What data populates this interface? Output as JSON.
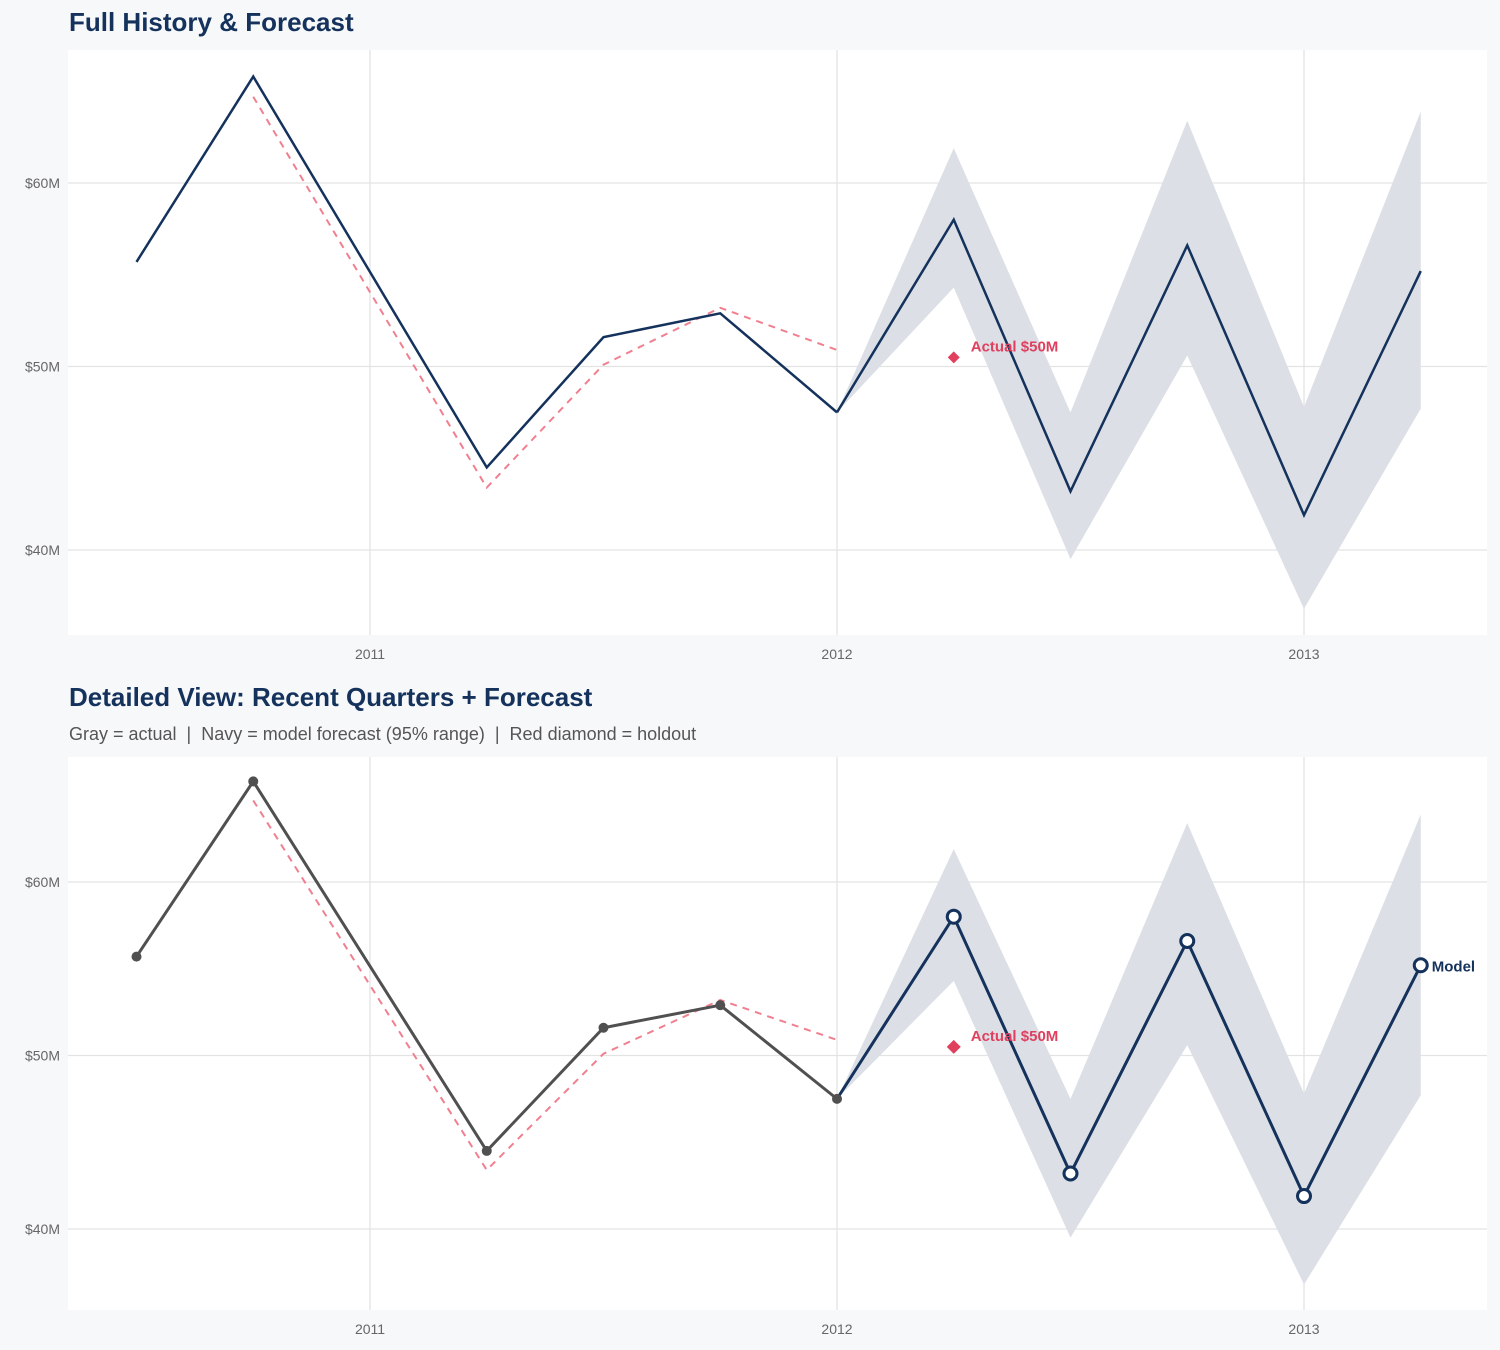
{
  "colors": {
    "navy": "#14325c",
    "actual_gray": "#505050",
    "holdout_red": "#e0405e",
    "dashed_red": "#f08090",
    "band": "#dce0e6"
  },
  "chart_data": [
    {
      "type": "line",
      "title": "Full History & Forecast",
      "xlabel": "",
      "ylabel": "",
      "x_ticks": [
        "2011",
        "2012",
        "2013"
      ],
      "y_ticks": [
        "$40M",
        "$50M",
        "$60M"
      ],
      "ylim": [
        35.4,
        67.2
      ],
      "xlim": [
        "2010-05-01",
        "2013-06-01"
      ],
      "grid": true,
      "series": [
        {
          "role": "history",
          "x": [
            "2010-07-01",
            "2010-10-01",
            "2011-04-01",
            "2011-07-01",
            "2011-10-01",
            "2012-01-01"
          ],
          "y": [
            55.7,
            65.8,
            44.5,
            51.6,
            52.9,
            47.5
          ]
        },
        {
          "role": "fitted-dashed",
          "x": [
            "2010-10-01",
            "2011-04-01",
            "2011-07-01",
            "2011-10-01",
            "2012-01-01"
          ],
          "y": [
            64.7,
            43.4,
            50.1,
            53.2,
            50.9
          ]
        },
        {
          "role": "forecast",
          "x": [
            "2012-01-01",
            "2012-04-01",
            "2012-07-01",
            "2012-10-01",
            "2013-01-01",
            "2013-04-01"
          ],
          "y": [
            47.5,
            58.0,
            43.2,
            56.6,
            41.9,
            55.2
          ],
          "lower": [
            47.5,
            54.3,
            39.5,
            50.6,
            36.8,
            47.7
          ],
          "upper": [
            47.5,
            61.9,
            47.5,
            63.4,
            47.8,
            63.9
          ]
        }
      ],
      "holdout": {
        "x": "2012-04-01",
        "y": 50.5,
        "label": "Actual $50M"
      }
    },
    {
      "type": "line",
      "title": "Detailed View: Recent Quarters + Forecast",
      "subtitle": "Gray = actual  |  Navy = model forecast (95% range)  |  Red diamond = holdout",
      "xlabel": "",
      "ylabel": "",
      "x_ticks": [
        "2011",
        "2012",
        "2013"
      ],
      "y_ticks": [
        "$40M",
        "$50M",
        "$60M"
      ],
      "ylim": [
        35.4,
        67.2
      ],
      "xlim": [
        "2010-05-01",
        "2013-06-01"
      ],
      "grid": true,
      "series": [
        {
          "role": "history",
          "x": [
            "2010-07-01",
            "2010-10-01",
            "2011-04-01",
            "2011-07-01",
            "2011-10-01",
            "2012-01-01"
          ],
          "y": [
            55.7,
            65.8,
            44.5,
            51.6,
            52.9,
            47.5
          ]
        },
        {
          "role": "fitted-dashed",
          "x": [
            "2010-10-01",
            "2011-04-01",
            "2011-07-01",
            "2011-10-01",
            "2012-01-01"
          ],
          "y": [
            64.7,
            43.4,
            50.1,
            53.2,
            50.9
          ]
        },
        {
          "role": "forecast",
          "name": "Model",
          "x": [
            "2012-01-01",
            "2012-04-01",
            "2012-07-01",
            "2012-10-01",
            "2013-01-01",
            "2013-04-01"
          ],
          "y": [
            47.5,
            58.0,
            43.2,
            56.6,
            41.9,
            55.2
          ],
          "lower": [
            47.5,
            54.3,
            39.5,
            50.6,
            36.8,
            47.7
          ],
          "upper": [
            47.5,
            61.9,
            47.5,
            63.4,
            47.8,
            63.9
          ]
        }
      ],
      "holdout": {
        "x": "2012-04-01",
        "y": 50.5,
        "label": "Actual $50M"
      }
    }
  ]
}
